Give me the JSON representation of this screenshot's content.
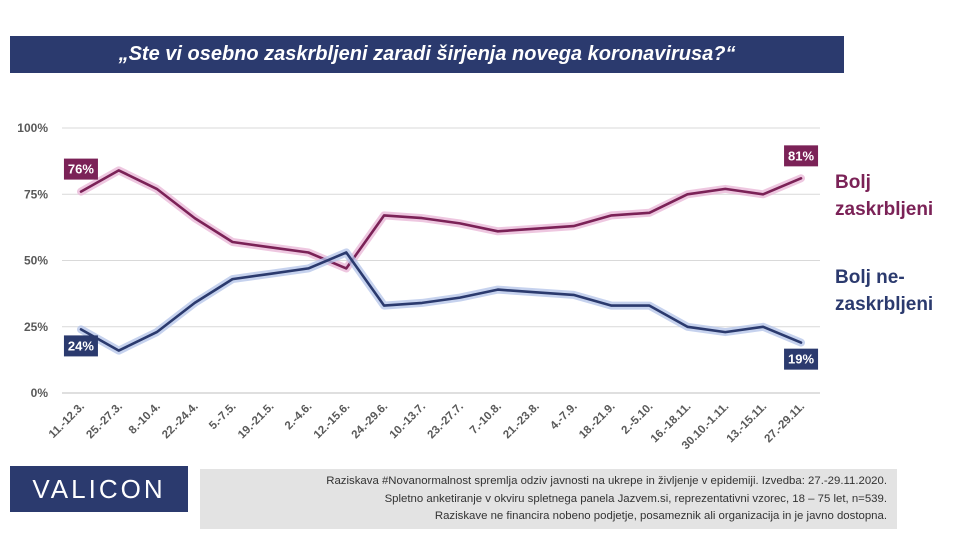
{
  "header": {
    "title": "„Ste vi osebno zaskrbljeni zaradi širjenja novega koronavirusa?“"
  },
  "legend": {
    "worried": [
      "Bolj",
      "zaskrbljeni"
    ],
    "not_worried": [
      "Bolj ne-",
      "zaskrbljeni"
    ]
  },
  "colors": {
    "worried": "#7b2257",
    "not_worried": "#2b3a6e",
    "title_bg": "#2b3a6e",
    "note_bg": "#e3e3e3"
  },
  "chart_data": {
    "type": "line",
    "title": "„Ste vi osebno zaskrbljeni zaradi širjenja novega koronavirusa?“",
    "xlabel": "",
    "ylabel": "",
    "ylim": [
      0,
      100
    ],
    "yticks": [
      0,
      25,
      50,
      75,
      100
    ],
    "ytick_labels": [
      "0%",
      "25%",
      "50%",
      "75%",
      "100%"
    ],
    "grid": true,
    "categories": [
      "11.-12.3.",
      "25.-27.3.",
      "8.-10.4.",
      "22.-24.4.",
      "5.-7.5.",
      "19.-21.5.",
      "2.-4.6.",
      "12.-15.6.",
      "24.-29.6.",
      "10.-13.7.",
      "23.-27.7.",
      "7.-10.8.",
      "21.-23.8.",
      "4.-7.9.",
      "18.-21.9.",
      "2.-5.10.",
      "16.-18.11.",
      "30.10.-1.11.",
      "13.-15.11.",
      "27.-29.11."
    ],
    "series": [
      {
        "name": "Bolj zaskrbljeni",
        "values": [
          76,
          84,
          77,
          66,
          57,
          55,
          53,
          47,
          67,
          66,
          64,
          61,
          62,
          63,
          67,
          68,
          75,
          77,
          75,
          81
        ],
        "labels": [
          {
            "index": 0,
            "text": "76%",
            "position": "above"
          },
          {
            "index": 19,
            "text": "81%",
            "position": "above"
          }
        ]
      },
      {
        "name": "Bolj ne-zaskrbljeni",
        "values": [
          24,
          16,
          23,
          34,
          43,
          45,
          47,
          53,
          33,
          34,
          36,
          39,
          38,
          37,
          33,
          33,
          25,
          23,
          25,
          19
        ],
        "labels": [
          {
            "index": 0,
            "text": "24%",
            "position": "below"
          },
          {
            "index": 19,
            "text": "19%",
            "position": "below"
          }
        ]
      }
    ],
    "legend_placement": "right"
  },
  "logo": {
    "text": "VALICON"
  },
  "footnote": [
    "Raziskava #Novanormalnost spremlja odziv javnosti na ukrepe in življenje v epidemiji. Izvedba: 27.-29.11.2020.",
    "Spletno anketiranje v okviru spletnega panela Jazvem.si, reprezentativni vzorec, 18 – 75 let, n=539.",
    "Raziskave ne financira nobeno podjetje, posameznik ali organizacija in je javno dostopna."
  ]
}
